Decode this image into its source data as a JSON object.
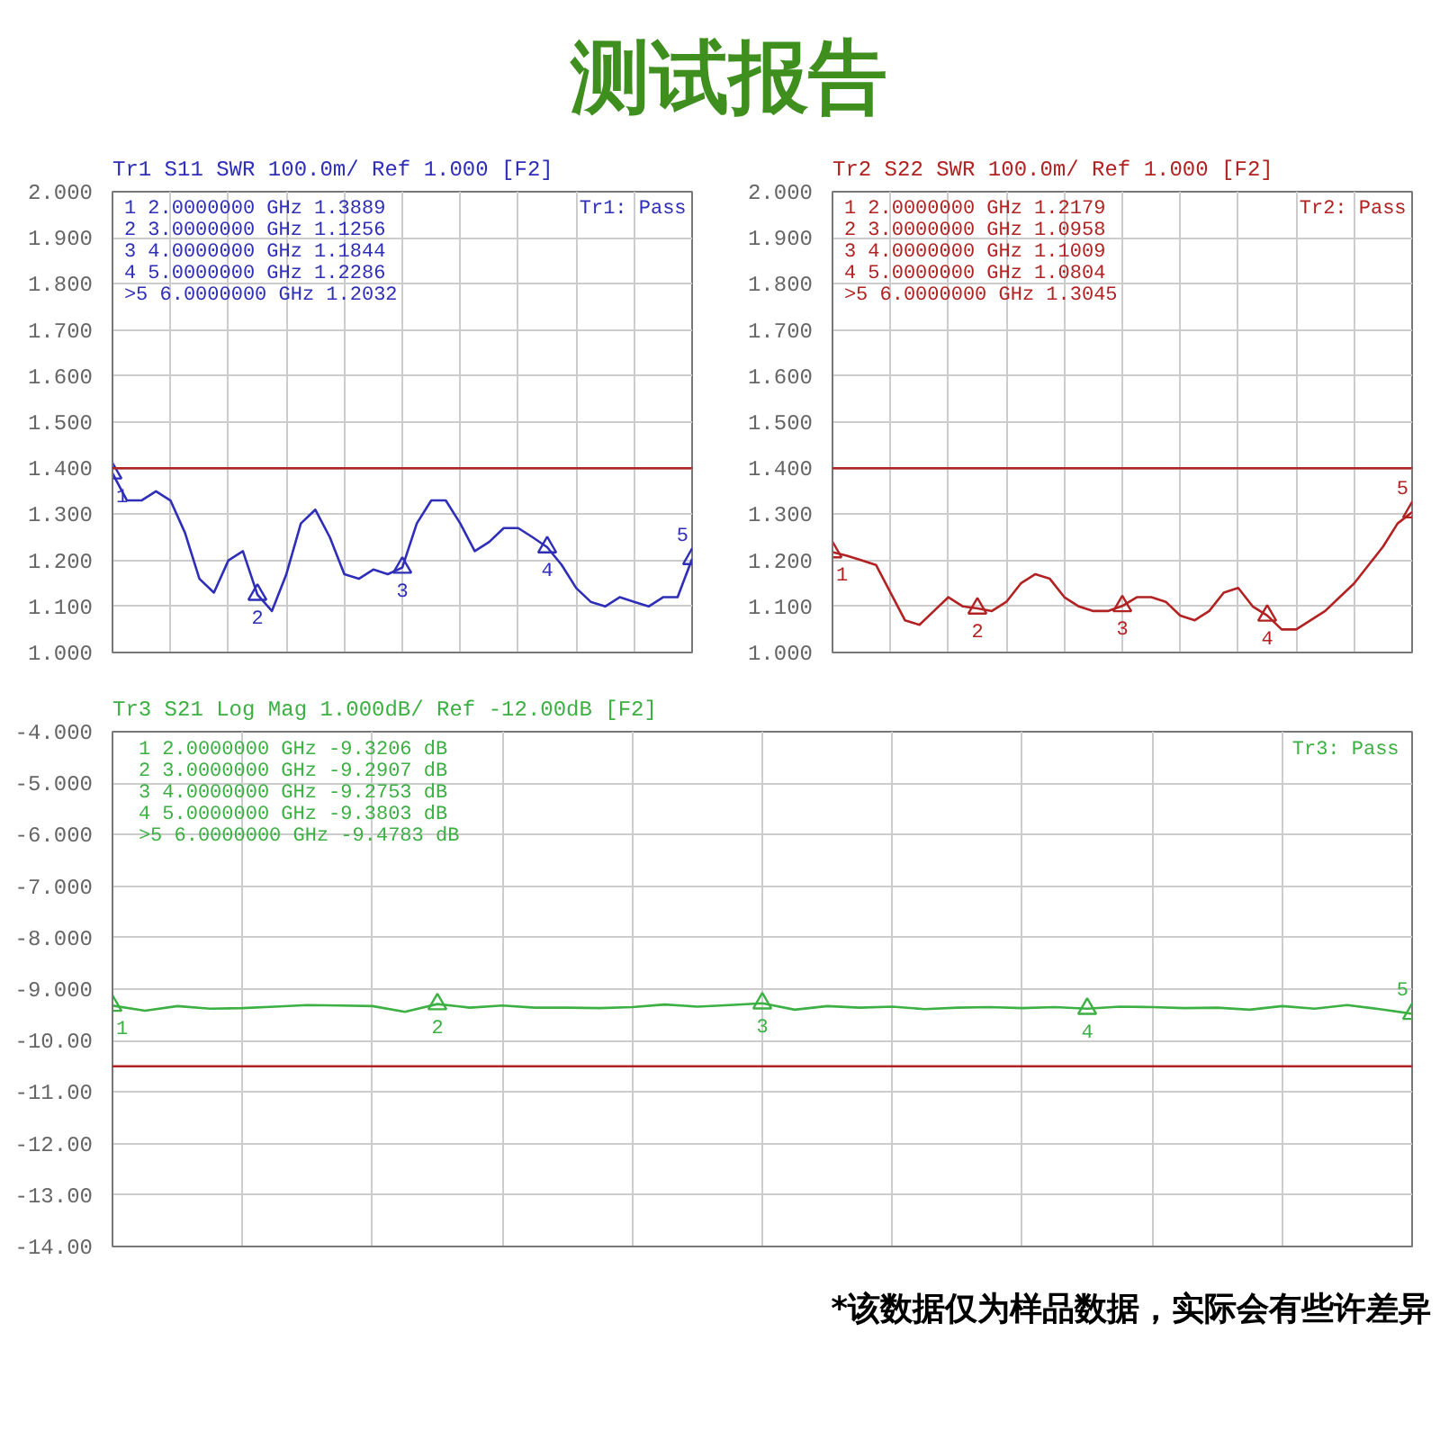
{
  "chart_data": [
    {
      "type": "line",
      "title": "测试报告",
      "subtitle": "Tr1 S11 SWR 100.0m/ Ref 1.000 [F2]",
      "categories": [
        null,
        null,
        null,
        null,
        null,
        null,
        null,
        null,
        null,
        null,
        null,
        null,
        null,
        null,
        null,
        null,
        null,
        null,
        null,
        null,
        null,
        null,
        null,
        null,
        null,
        null,
        null,
        null,
        null,
        null,
        null,
        null,
        null,
        null,
        null,
        null,
        null,
        null,
        null,
        null,
        null
      ],
      "series": [
        {
          "color": "#2e2eb8",
          "values": [
            1.3889,
            1.33,
            1.33,
            1.35,
            1.33,
            1.26,
            1.16,
            1.13,
            1.2,
            1.22,
            1.1256,
            1.09,
            1.17,
            1.28,
            1.31,
            1.25,
            1.17,
            1.16,
            1.18,
            1.17,
            1.1844,
            1.28,
            1.33,
            1.33,
            1.28,
            1.22,
            1.24,
            1.27,
            1.27,
            1.25,
            1.2286,
            1.19,
            1.14,
            1.11,
            1.1,
            1.12,
            1.11,
            1.1,
            1.12,
            1.12,
            1.2032
          ]
        },
        {
          "type": "scatter",
          "marker": "triangle",
          "color": "#2e2eb8",
          "values": [
            1.3889,
            null,
            null,
            null,
            null,
            null,
            null,
            null,
            null,
            null,
            1.1256,
            null,
            null,
            null,
            null,
            null,
            null,
            null,
            null,
            null,
            1.1844,
            null,
            null,
            null,
            null,
            null,
            null,
            null,
            null,
            null,
            1.2286,
            null,
            null,
            null,
            null,
            null,
            null,
            null,
            null,
            null,
            1.2032
          ]
        }
      ],
      "ylim": [
        1.0,
        2.0
      ],
      "yticks": [
        {
          "value": 1.0,
          "label": "1.000"
        },
        {
          "value": 1.1,
          "label": "1.100"
        },
        {
          "value": 1.2,
          "label": "1.200"
        },
        {
          "value": 1.3,
          "label": "1.300"
        },
        {
          "value": 1.4,
          "label": "1.400"
        },
        {
          "value": 1.5,
          "label": "1.500"
        },
        {
          "value": 1.6,
          "label": "1.600"
        },
        {
          "value": 1.7,
          "label": "1.700"
        },
        {
          "value": 1.8,
          "label": "1.800"
        },
        {
          "value": 1.9,
          "label": "1.900"
        },
        {
          "value": 2.0,
          "label": "2.000"
        }
      ],
      "ref_lines": [
        {
          "axis": "y",
          "value": 1.4,
          "color": "#b22222"
        }
      ],
      "grid": true,
      "tick_labels": "y",
      "annotations": [
        " 1  2.0000000 GHz  1.3889",
        " 2  3.0000000 GHz  1.1256",
        " 3  4.0000000 GHz  1.1844",
        " 4  5.0000000 GHz  1.2286",
        ">5  6.0000000 GHz  1.2032",
        "Tr1: Pass",
        {
          "text": "1",
          "y": 1.3889
        },
        {
          "text": "2",
          "y": 1.1256
        },
        {
          "text": "3",
          "y": 1.1844
        },
        {
          "text": "4",
          "y": 1.2286
        },
        {
          "text": "5",
          "y": 1.2032
        }
      ]
    },
    {
      "type": "line",
      "subtitle": "Tr2 S22 SWR 100.0m/ Ref 1.000 [F2]",
      "categories": [
        null,
        null,
        null,
        null,
        null,
        null,
        null,
        null,
        null,
        null,
        null,
        null,
        null,
        null,
        null,
        null,
        null,
        null,
        null,
        null,
        null,
        null,
        null,
        null,
        null,
        null,
        null,
        null,
        null,
        null,
        null,
        null,
        null,
        null,
        null,
        null,
        null,
        null,
        null,
        null,
        null
      ],
      "series": [
        {
          "color": "#b22222",
          "values": [
            1.2179,
            1.21,
            1.2,
            1.19,
            1.13,
            1.07,
            1.06,
            1.09,
            1.12,
            1.1,
            1.0958,
            1.09,
            1.11,
            1.15,
            1.17,
            1.16,
            1.12,
            1.1,
            1.09,
            1.09,
            1.1009,
            1.12,
            1.12,
            1.11,
            1.08,
            1.07,
            1.09,
            1.13,
            1.14,
            1.1,
            1.0804,
            1.05,
            1.05,
            1.07,
            1.09,
            1.12,
            1.15,
            1.19,
            1.23,
            1.28,
            1.3045
          ]
        },
        {
          "type": "scatter",
          "marker": "triangle",
          "color": "#b22222",
          "values": [
            1.2179,
            null,
            null,
            null,
            null,
            null,
            null,
            null,
            null,
            null,
            1.0958,
            null,
            null,
            null,
            null,
            null,
            null,
            null,
            null,
            null,
            1.1009,
            null,
            null,
            null,
            null,
            null,
            null,
            null,
            null,
            null,
            1.0804,
            null,
            null,
            null,
            null,
            null,
            null,
            null,
            null,
            null,
            1.3045
          ]
        }
      ],
      "ylim": [
        1.0,
        2.0
      ],
      "yticks": [
        {
          "value": 1.0,
          "label": "1.000"
        },
        {
          "value": 1.1,
          "label": "1.100"
        },
        {
          "value": 1.2,
          "label": "1.200"
        },
        {
          "value": 1.3,
          "label": "1.300"
        },
        {
          "value": 1.4,
          "label": "1.400"
        },
        {
          "value": 1.5,
          "label": "1.500"
        },
        {
          "value": 1.6,
          "label": "1.600"
        },
        {
          "value": 1.7,
          "label": "1.700"
        },
        {
          "value": 1.8,
          "label": "1.800"
        },
        {
          "value": 1.9,
          "label": "1.900"
        },
        {
          "value": 2.0,
          "label": "2.000"
        }
      ],
      "ref_lines": [
        {
          "axis": "y",
          "value": 1.4,
          "color": "#b22222"
        }
      ],
      "grid": true,
      "tick_labels": "y",
      "annotations": [
        " 1  2.0000000 GHz  1.2179",
        " 2  3.0000000 GHz  1.0958",
        " 3  4.0000000 GHz  1.1009",
        " 4  5.0000000 GHz  1.0804",
        ">5  6.0000000 GHz  1.3045",
        "Tr2: Pass",
        {
          "text": "1",
          "y": 1.2179
        },
        {
          "text": "2",
          "y": 1.0958
        },
        {
          "text": "3",
          "y": 1.1009
        },
        {
          "text": "4",
          "y": 1.0804
        },
        {
          "text": "5",
          "y": 1.3045
        }
      ]
    },
    {
      "type": "line",
      "subtitle": "Tr3 S21 Log Mag 1.000dB/ Ref -12.00dB [F2]",
      "categories": [
        null,
        null,
        null,
        null,
        null,
        null,
        null,
        null,
        null,
        null,
        null,
        null,
        null,
        null,
        null,
        null,
        null,
        null,
        null,
        null,
        null,
        null,
        null,
        null,
        null,
        null,
        null,
        null,
        null,
        null,
        null,
        null,
        null,
        null,
        null,
        null,
        null,
        null,
        null,
        null,
        null
      ],
      "series": [
        {
          "color": "#3cb043",
          "values": [
            -9.3206,
            -9.42,
            -9.33,
            -9.38,
            -9.37,
            -9.34,
            -9.31,
            -9.32,
            -9.33,
            -9.44,
            -9.2907,
            -9.36,
            -9.32,
            -9.36,
            -9.36,
            -9.37,
            -9.35,
            -9.3,
            -9.34,
            -9.31,
            -9.2753,
            -9.4,
            -9.33,
            -9.36,
            -9.34,
            -9.39,
            -9.36,
            -9.35,
            -9.37,
            -9.35,
            -9.3803,
            -9.34,
            -9.35,
            -9.37,
            -9.36,
            -9.4,
            -9.33,
            -9.38,
            -9.31,
            -9.39,
            -9.4783
          ]
        },
        {
          "type": "scatter",
          "marker": "triangle",
          "color": "#3cb043",
          "values": [
            -9.3206,
            null,
            null,
            null,
            null,
            null,
            null,
            null,
            null,
            null,
            -9.2907,
            null,
            null,
            null,
            null,
            null,
            null,
            null,
            null,
            null,
            -9.2753,
            null,
            null,
            null,
            null,
            null,
            null,
            null,
            null,
            null,
            -9.3803,
            null,
            null,
            null,
            null,
            null,
            null,
            null,
            null,
            null,
            -9.4783
          ]
        }
      ],
      "ylim": [
        -14.0,
        -4.0
      ],
      "yticks": [
        {
          "value": -14,
          "label": "-14.00"
        },
        {
          "value": -13,
          "label": "-13.00"
        },
        {
          "value": -12,
          "label": "-12.00"
        },
        {
          "value": -11,
          "label": "-11.00"
        },
        {
          "value": -10,
          "label": "-10.00"
        },
        {
          "value": -9,
          "label": "-9.000"
        },
        {
          "value": -8,
          "label": "-8.000"
        },
        {
          "value": -7,
          "label": "-7.000"
        },
        {
          "value": -6,
          "label": "-6.000"
        },
        {
          "value": -5,
          "label": "-5.000"
        },
        {
          "value": -4,
          "label": "-4.000"
        }
      ],
      "ref_lines": [
        {
          "axis": "y",
          "value": -10.5,
          "color": "#b22222"
        }
      ],
      "grid": true,
      "tick_labels": "y",
      "annotations": [
        " 1  2.0000000 GHz -9.3206 dB",
        " 2  3.0000000 GHz -9.2907 dB",
        " 3  4.0000000 GHz -9.2753 dB",
        " 4  5.0000000 GHz -9.3803 dB",
        ">5  6.0000000 GHz -9.4783 dB",
        "Tr3: Pass",
        "*该数据仅为样品数据，实际会有些许差异",
        {
          "text": "1",
          "y": -9.3206
        },
        {
          "text": "2",
          "y": -9.2907
        },
        {
          "text": "3",
          "y": -9.2753
        },
        {
          "text": "4",
          "y": -9.3803
        },
        {
          "text": "5",
          "y": -9.4783
        }
      ]
    }
  ]
}
